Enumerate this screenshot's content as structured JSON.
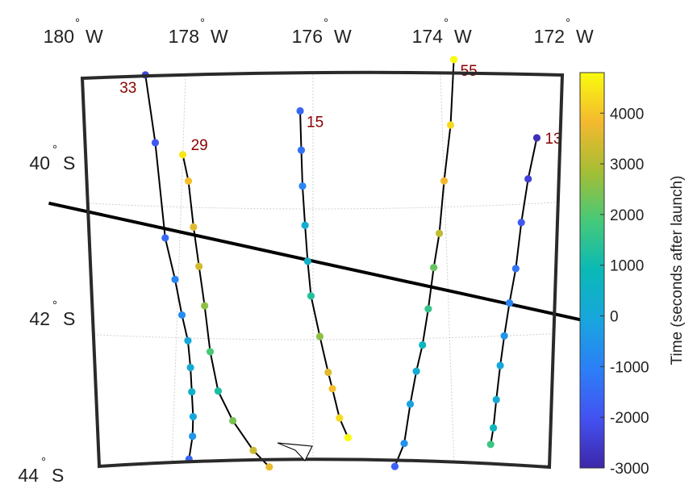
{
  "chart_data": {
    "type": "scatter",
    "title": "",
    "projection": "map",
    "longitude_ticks": [
      {
        "value": -180,
        "num": "180",
        "hemi": "W"
      },
      {
        "value": -178,
        "num": "178",
        "hemi": "W"
      },
      {
        "value": -176,
        "num": "176",
        "hemi": "W"
      },
      {
        "value": -174,
        "num": "174",
        "hemi": "W"
      },
      {
        "value": -172,
        "num": "172",
        "hemi": "W"
      }
    ],
    "latitude_ticks": [
      {
        "value": -40,
        "num": "40",
        "hemi": "S"
      },
      {
        "value": -42,
        "num": "42",
        "hemi": "S"
      },
      {
        "value": -44,
        "num": "44",
        "hemi": "S"
      }
    ],
    "degree_symbol": "°",
    "grid": true,
    "colorbar": {
      "label": "Time (seconds after launch)",
      "range": [
        -3000,
        4800
      ],
      "ticks": [
        4000,
        3000,
        2000,
        1000,
        0,
        -1000,
        -2000,
        -3000
      ],
      "colormap": "parula",
      "placement": "right"
    },
    "reference_line": {
      "description_visible": false,
      "points": [
        [
          -180,
          -40.03
        ],
        [
          -177.9,
          -40.4
        ],
        [
          -175.9,
          -40.82
        ],
        [
          -173.8,
          -41.33
        ],
        [
          -171.9,
          -41.86
        ]
      ]
    },
    "series": [
      {
        "name": "33",
        "points": [
          [
            -178.63,
            -38.0,
            -2300
          ],
          [
            -178.43,
            -39.03,
            -1900
          ],
          [
            -178.22,
            -40.48,
            -1500
          ],
          [
            -178.05,
            -41.11,
            -900
          ],
          [
            -177.93,
            -41.65,
            -700
          ],
          [
            -177.83,
            -42.04,
            0
          ],
          [
            -177.78,
            -42.45,
            200
          ],
          [
            -177.75,
            -42.82,
            500
          ],
          [
            -177.72,
            -43.2,
            0
          ],
          [
            -177.72,
            -43.5,
            -500
          ],
          [
            -177.76,
            -43.85,
            -1600
          ]
        ]
      },
      {
        "name": "29",
        "points": [
          [
            -178.0,
            -39.2,
            4500
          ],
          [
            -177.9,
            -39.6,
            3900
          ],
          [
            -177.8,
            -40.3,
            3600
          ],
          [
            -177.7,
            -40.9,
            3400
          ],
          [
            -177.6,
            -41.5,
            2600
          ],
          [
            -177.5,
            -42.2,
            1900
          ],
          [
            -177.37,
            -42.8,
            1200
          ],
          [
            -177.15,
            -43.25,
            2400
          ],
          [
            -176.85,
            -43.7,
            3300
          ],
          [
            -176.62,
            -43.95,
            3700
          ]
        ]
      },
      {
        "name": "15",
        "points": [
          [
            -176.2,
            -38.5,
            -1600
          ],
          [
            -176.18,
            -39.1,
            -1300
          ],
          [
            -176.16,
            -39.65,
            -900
          ],
          [
            -176.12,
            -40.25,
            200
          ],
          [
            -176.08,
            -40.8,
            500
          ],
          [
            -176.03,
            -41.33,
            1300
          ],
          [
            -175.9,
            -41.95,
            2600
          ],
          [
            -175.78,
            -42.5,
            3600
          ],
          [
            -175.72,
            -42.75,
            3900
          ],
          [
            -175.62,
            -43.2,
            4300
          ],
          [
            -175.5,
            -43.5,
            4800
          ]
        ]
      },
      {
        "name": "55",
        "points": [
          [
            -173.78,
            -37.75,
            4800
          ],
          [
            -173.87,
            -38.75,
            4300
          ],
          [
            -174.0,
            -39.6,
            3800
          ],
          [
            -174.1,
            -40.4,
            3200
          ],
          [
            -174.2,
            -40.92,
            2200
          ],
          [
            -174.3,
            -41.55,
            1600
          ],
          [
            -174.4,
            -42.1,
            700
          ],
          [
            -174.5,
            -42.5,
            200
          ],
          [
            -174.6,
            -43.0,
            -200
          ],
          [
            -174.7,
            -43.6,
            -600
          ],
          [
            -174.84,
            -43.95,
            -1700
          ]
        ]
      },
      {
        "name": "13",
        "points": [
          [
            -172.55,
            -39.0,
            -2800
          ],
          [
            -172.72,
            -39.62,
            -2400
          ],
          [
            -172.86,
            -40.28,
            -1900
          ],
          [
            -172.98,
            -40.98,
            -1300
          ],
          [
            -173.1,
            -41.5,
            -900
          ],
          [
            -173.2,
            -42.0,
            -500
          ],
          [
            -173.28,
            -42.45,
            0
          ],
          [
            -173.36,
            -42.97,
            200
          ],
          [
            -173.42,
            -43.4,
            700
          ],
          [
            -173.47,
            -43.65,
            1700
          ]
        ]
      }
    ]
  }
}
